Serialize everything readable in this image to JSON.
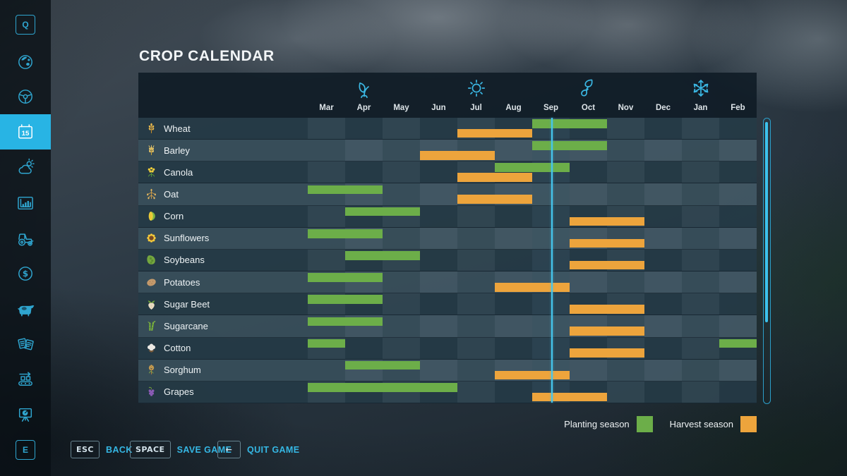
{
  "app": {
    "title": "CROP CALENDAR"
  },
  "colors": {
    "accent": "#38b9e6",
    "planting": "#6cae49",
    "harvest": "#eda43c"
  },
  "sidebar": {
    "items": [
      {
        "id": "help",
        "icon": "q-key-icon",
        "key_label": "Q",
        "selected": false
      },
      {
        "id": "map",
        "icon": "globe-icon",
        "selected": false
      },
      {
        "id": "vehicles",
        "icon": "steering-wheel-icon",
        "selected": false
      },
      {
        "id": "calendar",
        "icon": "calendar-icon",
        "badge": "15",
        "selected": true
      },
      {
        "id": "weather",
        "icon": "weather-icon",
        "selected": false
      },
      {
        "id": "prices",
        "icon": "statistics-chart-icon",
        "selected": false
      },
      {
        "id": "garage",
        "icon": "tractor-icon",
        "selected": false
      },
      {
        "id": "finances",
        "icon": "dollar-icon",
        "selected": false
      },
      {
        "id": "animals",
        "icon": "cow-icon",
        "selected": false
      },
      {
        "id": "contracts",
        "icon": "contracts-icon",
        "selected": false
      },
      {
        "id": "production",
        "icon": "conveyor-icon",
        "selected": false
      },
      {
        "id": "overview",
        "icon": "easel-chart-icon",
        "selected": false
      },
      {
        "id": "controls",
        "icon": "e-key-icon",
        "key_label": "E",
        "selected": false
      }
    ]
  },
  "calendar": {
    "months": [
      "Mar",
      "Apr",
      "May",
      "Jun",
      "Jul",
      "Aug",
      "Sep",
      "Oct",
      "Nov",
      "Dec",
      "Jan",
      "Feb"
    ],
    "seasons": [
      {
        "name": "spring",
        "icon": "spring-leaf-icon",
        "month_index": 1
      },
      {
        "name": "summer",
        "icon": "summer-sun-icon",
        "month_index": 4
      },
      {
        "name": "autumn",
        "icon": "autumn-leaves-icon",
        "month_index": 7
      },
      {
        "name": "winter",
        "icon": "winter-snowflake-icon",
        "month_index": 10
      }
    ],
    "current_day_line": {
      "month_index": 6.5
    },
    "current_month": "Sep",
    "crops": [
      {
        "name": "Wheat",
        "icon": "wheat-icon",
        "planting": [
          {
            "start": 6,
            "months": 2
          }
        ],
        "harvest": [
          {
            "start": 4,
            "months": 2
          }
        ]
      },
      {
        "name": "Barley",
        "icon": "barley-icon",
        "planting": [
          {
            "start": 6,
            "months": 2
          }
        ],
        "harvest": [
          {
            "start": 3,
            "months": 2
          }
        ]
      },
      {
        "name": "Canola",
        "icon": "canola-icon",
        "planting": [
          {
            "start": 5,
            "months": 2
          }
        ],
        "harvest": [
          {
            "start": 4,
            "months": 2
          }
        ]
      },
      {
        "name": "Oat",
        "icon": "oat-icon",
        "planting": [
          {
            "start": 0,
            "months": 2
          }
        ],
        "harvest": [
          {
            "start": 4,
            "months": 2
          }
        ]
      },
      {
        "name": "Corn",
        "icon": "corn-icon",
        "planting": [
          {
            "start": 1,
            "months": 2
          }
        ],
        "harvest": [
          {
            "start": 7,
            "months": 2
          }
        ]
      },
      {
        "name": "Sunflowers",
        "icon": "sunflower-icon",
        "planting": [
          {
            "start": 0,
            "months": 2
          }
        ],
        "harvest": [
          {
            "start": 7,
            "months": 2
          }
        ]
      },
      {
        "name": "Soybeans",
        "icon": "soybean-icon",
        "planting": [
          {
            "start": 1,
            "months": 2
          }
        ],
        "harvest": [
          {
            "start": 7,
            "months": 2
          }
        ]
      },
      {
        "name": "Potatoes",
        "icon": "potato-icon",
        "planting": [
          {
            "start": 0,
            "months": 2
          }
        ],
        "harvest": [
          {
            "start": 5,
            "months": 2
          }
        ]
      },
      {
        "name": "Sugar Beet",
        "icon": "sugar-beet-icon",
        "planting": [
          {
            "start": 0,
            "months": 2
          }
        ],
        "harvest": [
          {
            "start": 7,
            "months": 2
          }
        ]
      },
      {
        "name": "Sugarcane",
        "icon": "sugarcane-icon",
        "planting": [
          {
            "start": 0,
            "months": 2
          }
        ],
        "harvest": [
          {
            "start": 7,
            "months": 2
          }
        ]
      },
      {
        "name": "Cotton",
        "icon": "cotton-icon",
        "planting": [
          {
            "start": 0,
            "months": 1
          },
          {
            "start": 11,
            "months": 1
          }
        ],
        "harvest": [
          {
            "start": 7,
            "months": 2
          }
        ]
      },
      {
        "name": "Sorghum",
        "icon": "sorghum-icon",
        "planting": [
          {
            "start": 1,
            "months": 2
          }
        ],
        "harvest": [
          {
            "start": 5,
            "months": 2
          }
        ]
      },
      {
        "name": "Grapes",
        "icon": "grape-icon",
        "planting": [
          {
            "start": 0,
            "months": 4
          }
        ],
        "harvest": [
          {
            "start": 6,
            "months": 2
          }
        ]
      }
    ],
    "legend": [
      {
        "id": "planting",
        "label": "Planting season",
        "color": "#6cae49"
      },
      {
        "id": "harvest",
        "label": "Harvest season",
        "color": "#eda43c"
      }
    ]
  },
  "footer": {
    "actions": [
      {
        "id": "back",
        "key": "ESC",
        "label": "BACK"
      },
      {
        "id": "save-game",
        "key": "SPACE",
        "label": "SAVE GAME"
      },
      {
        "id": "quit-game",
        "key": "←",
        "label": "QUIT GAME"
      }
    ]
  }
}
